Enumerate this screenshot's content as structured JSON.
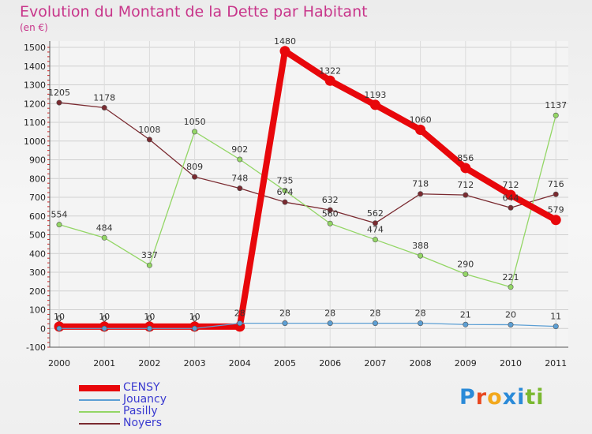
{
  "header": {
    "title": "Evolution du Montant de la Dette par Habitant",
    "subtitle": "(en €)"
  },
  "logo": {
    "letters": [
      "P",
      "r",
      "o",
      "x",
      "i",
      "t",
      "i"
    ],
    "colors": [
      "#2a8ad8",
      "#e8471f",
      "#f2a81d",
      "#2a8ad8",
      "#2a8ad8",
      "#7ab830",
      "#7ab830"
    ]
  },
  "chart_data": {
    "type": "line",
    "title": "Evolution du Montant de la Dette par Habitant",
    "ylabel": "(en €)",
    "xlabel": "",
    "x": [
      "2000",
      "2001",
      "2002",
      "2003",
      "2004",
      "2005",
      "2006",
      "2007",
      "2008",
      "2009",
      "2010",
      "2011"
    ],
    "ylim": [
      -100,
      1500
    ],
    "yticks": [
      -100,
      0,
      100,
      200,
      300,
      400,
      500,
      600,
      700,
      800,
      900,
      1000,
      1100,
      1200,
      1300,
      1400,
      1500
    ],
    "grid": true,
    "legend_position": "bottom-left",
    "series": [
      {
        "name": "CENSY",
        "color": "#e8070b",
        "width": "thick",
        "values": [
          10,
          10,
          10,
          10,
          10,
          1480,
          1322,
          1193,
          1060,
          856,
          712,
          579
        ],
        "labels": [
          "10",
          "10",
          "10",
          "10",
          "",
          "1480",
          "1322",
          "1193",
          "1060",
          "856",
          "712",
          "579"
        ]
      },
      {
        "name": "Jouancy",
        "color": "#5c9fd4",
        "width": "thin",
        "values": [
          0,
          0,
          0,
          0,
          28,
          28,
          28,
          28,
          28,
          21,
          20,
          11
        ],
        "labels": [
          "0",
          "0",
          "0",
          "0",
          "28",
          "28",
          "28",
          "28",
          "28",
          "21",
          "20",
          "11"
        ]
      },
      {
        "name": "Pasilly",
        "color": "#93d665",
        "width": "thin",
        "values": [
          554,
          484,
          337,
          1050,
          902,
          735,
          560,
          474,
          388,
          290,
          221,
          1137
        ],
        "labels": [
          "554",
          "484",
          "337",
          "1050",
          "902",
          "735",
          "560",
          "474",
          "388",
          "290",
          "221",
          "1137"
        ]
      },
      {
        "name": "Noyers",
        "color": "#7a2a30",
        "width": "thin",
        "values": [
          1205,
          1178,
          1008,
          809,
          748,
          674,
          632,
          562,
          718,
          712,
          644,
          716
        ],
        "labels": [
          "1205",
          "1178",
          "1008",
          "809",
          "748",
          "674",
          "632",
          "562",
          "718",
          "712",
          "644",
          "716"
        ]
      }
    ]
  }
}
